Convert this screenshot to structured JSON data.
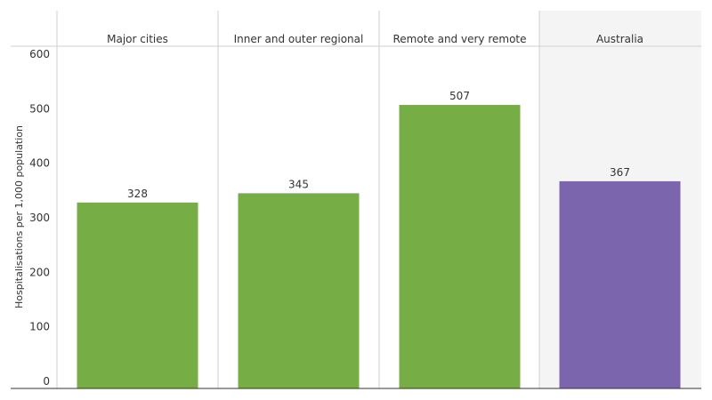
{
  "chart_data": {
    "type": "bar",
    "categories": [
      "Major cities",
      "Inner and outer regional",
      "Remote and very remote",
      "Australia"
    ],
    "values": [
      328,
      345,
      507,
      367
    ],
    "title": "",
    "xlabel": "",
    "ylabel": "Hospitalisations per 1,000 population",
    "ylim": [
      0,
      600
    ],
    "yticks": [
      0,
      100,
      200,
      300,
      400,
      500,
      600
    ],
    "grid": false,
    "legend": "none",
    "colors": [
      "#77ad45",
      "#77ad45",
      "#77ad45",
      "#7b65ac"
    ],
    "highlight_category_background": "#f4f4f4"
  }
}
